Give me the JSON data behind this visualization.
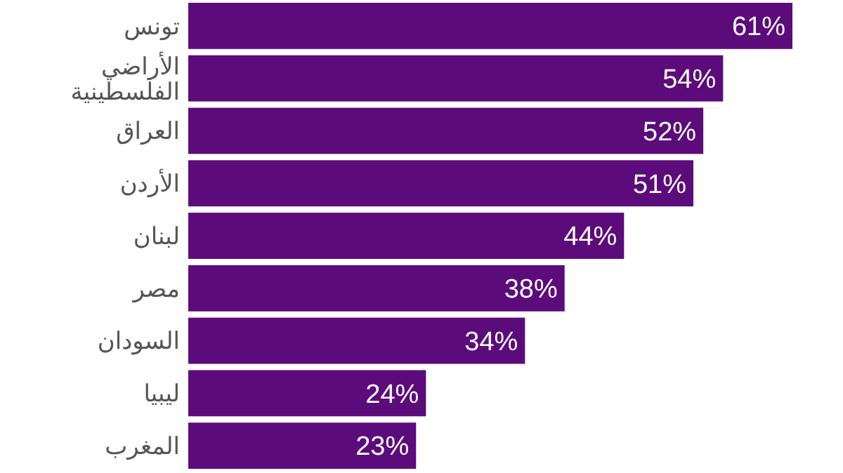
{
  "chart_data": {
    "type": "bar",
    "orientation": "horizontal",
    "categories": [
      "تونس",
      "الأراضي الفلسطينية",
      "العراق",
      "الأردن",
      "لبنان",
      "مصر",
      "السودان",
      "ليبيا",
      "المغرب"
    ],
    "values": [
      61,
      54,
      52,
      51,
      44,
      38,
      34,
      24,
      23
    ],
    "value_labels": [
      "61%",
      "54%",
      "52%",
      "51%",
      "44%",
      "38%",
      "34%",
      "24%",
      "23%"
    ],
    "color": "#5c0b7b"
  }
}
